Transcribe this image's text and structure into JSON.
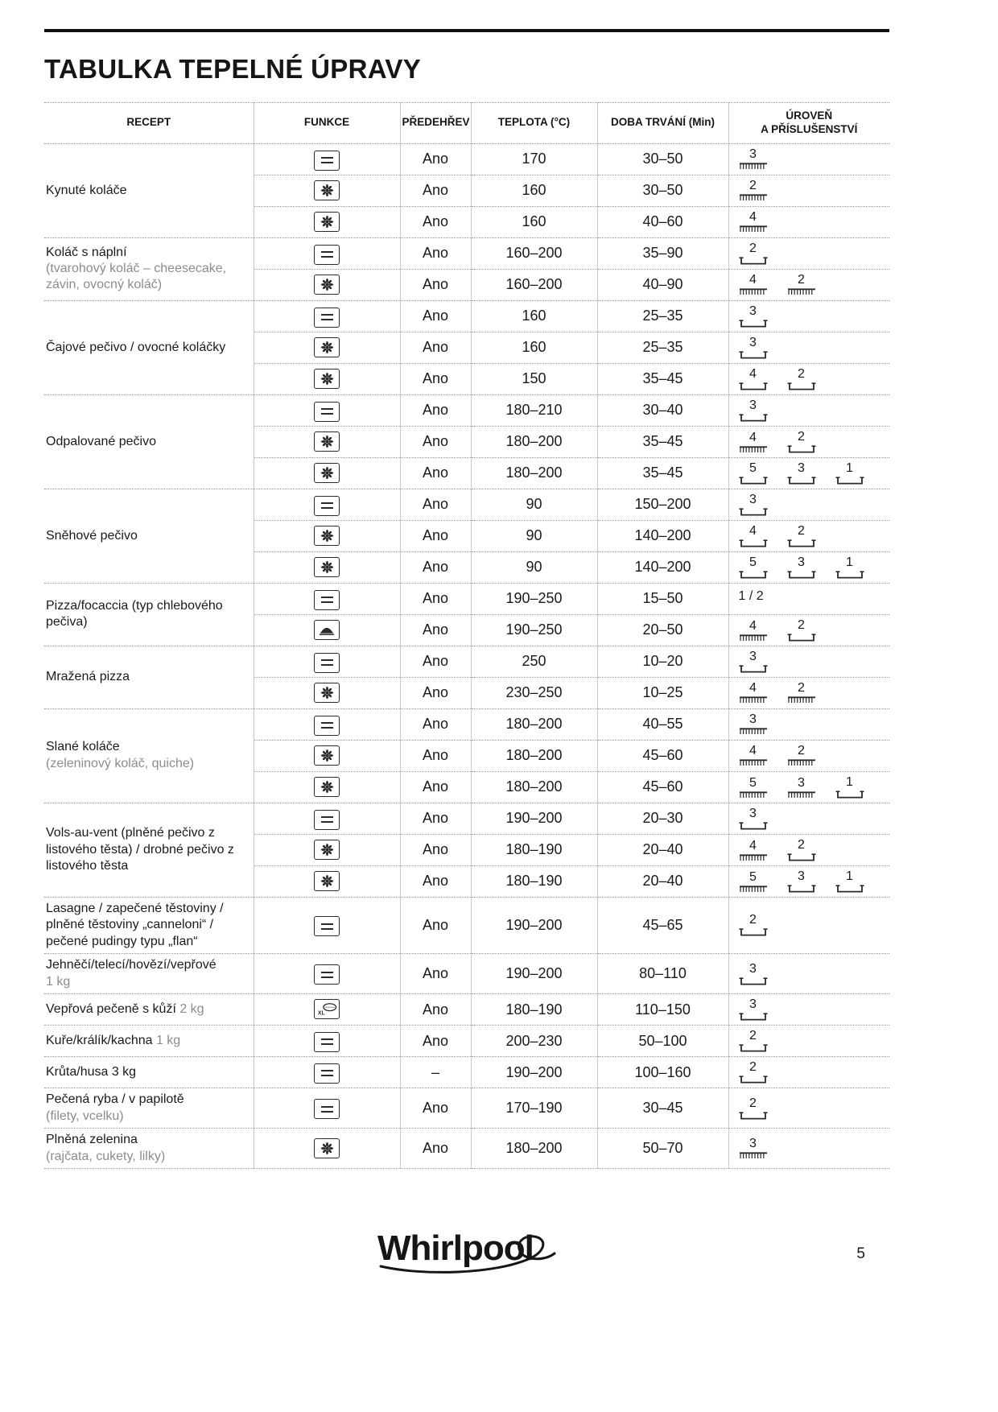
{
  "page": {
    "title": "TABULKA TEPELNÉ ÚPRAVY",
    "page_number": "5",
    "brand": "Whirlpool"
  },
  "table": {
    "headers": [
      "RECEPT",
      "FUNKCE",
      "PŘEDEHŘEV",
      "TEPLOTA (°C)",
      "DOBA TRVÁNÍ (Min)",
      "ÚROVEŇ\nA PŘÍSLUŠENSTVÍ"
    ],
    "function_legend": {
      "static": "static-heating-function",
      "fan": "forced-air-function",
      "bread": "bread-pizza-function",
      "maxi": "maxi-cooking-function"
    },
    "groups": [
      {
        "recipe": "Kynuté koláče",
        "rows": [
          {
            "fn": "static",
            "preheat": "Ano",
            "temp": "170",
            "time": "30–50",
            "levels": [
              {
                "n": "3",
                "t": "wire"
              }
            ]
          },
          {
            "fn": "fan",
            "preheat": "Ano",
            "temp": "160",
            "time": "30–50",
            "levels": [
              {
                "n": "2",
                "t": "wire"
              }
            ]
          },
          {
            "fn": "fan",
            "preheat": "Ano",
            "temp": "160",
            "time": "40–60",
            "levels": [
              {
                "n": "4",
                "t": "wire"
              }
            ]
          }
        ]
      },
      {
        "recipe": "Koláč s náplní",
        "sub": "(tvarohový koláč – cheesecake, závin, ovocný koláč)",
        "rows": [
          {
            "fn": "static",
            "preheat": "Ano",
            "temp": "160–200",
            "time": "35–90",
            "levels": [
              {
                "n": "2",
                "t": "tray"
              }
            ]
          },
          {
            "fn": "fan",
            "preheat": "Ano",
            "temp": "160–200",
            "time": "40–90",
            "levels": [
              {
                "n": "4",
                "t": "wire"
              },
              {
                "n": "2",
                "t": "wire"
              }
            ]
          }
        ]
      },
      {
        "recipe": "Čajové pečivo / ovocné koláčky",
        "rows": [
          {
            "fn": "static",
            "preheat": "Ano",
            "temp": "160",
            "time": "25–35",
            "levels": [
              {
                "n": "3",
                "t": "tray"
              }
            ]
          },
          {
            "fn": "fan",
            "preheat": "Ano",
            "temp": "160",
            "time": "25–35",
            "levels": [
              {
                "n": "3",
                "t": "tray"
              }
            ]
          },
          {
            "fn": "fan",
            "preheat": "Ano",
            "temp": "150",
            "time": "35–45",
            "levels": [
              {
                "n": "4",
                "t": "tray"
              },
              {
                "n": "2",
                "t": "tray"
              }
            ]
          }
        ]
      },
      {
        "recipe": "Odpalované pečivo",
        "rows": [
          {
            "fn": "static",
            "preheat": "Ano",
            "temp": "180–210",
            "time": "30–40",
            "levels": [
              {
                "n": "3",
                "t": "tray"
              }
            ]
          },
          {
            "fn": "fan",
            "preheat": "Ano",
            "temp": "180–200",
            "time": "35–45",
            "levels": [
              {
                "n": "4",
                "t": "wire"
              },
              {
                "n": "2",
                "t": "tray"
              }
            ]
          },
          {
            "fn": "fan",
            "preheat": "Ano",
            "temp": "180–200",
            "time": "35–45",
            "levels": [
              {
                "n": "5",
                "t": "tray"
              },
              {
                "n": "3",
                "t": "tray"
              },
              {
                "n": "1",
                "t": "tray"
              }
            ]
          }
        ]
      },
      {
        "recipe": "Sněhové pečivo",
        "rows": [
          {
            "fn": "static",
            "preheat": "Ano",
            "temp": "90",
            "time": "150–200",
            "levels": [
              {
                "n": "3",
                "t": "tray"
              }
            ]
          },
          {
            "fn": "fan",
            "preheat": "Ano",
            "temp": "90",
            "time": "140–200",
            "levels": [
              {
                "n": "4",
                "t": "tray"
              },
              {
                "n": "2",
                "t": "tray"
              }
            ]
          },
          {
            "fn": "fan",
            "preheat": "Ano",
            "temp": "90",
            "time": "140–200",
            "levels": [
              {
                "n": "5",
                "t": "tray"
              },
              {
                "n": "3",
                "t": "tray"
              },
              {
                "n": "1",
                "t": "tray"
              }
            ]
          }
        ]
      },
      {
        "recipe": "Pizza/focaccia (typ chlebového pečiva)",
        "rows": [
          {
            "fn": "static",
            "preheat": "Ano",
            "temp": "190–250",
            "time": "15–50",
            "levels": [
              {
                "n": "1 / 2",
                "t": "none"
              }
            ]
          },
          {
            "fn": "bread",
            "preheat": "Ano",
            "temp": "190–250",
            "time": "20–50",
            "levels": [
              {
                "n": "4",
                "t": "wire"
              },
              {
                "n": "2",
                "t": "tray"
              }
            ]
          }
        ]
      },
      {
        "recipe": "Mražená pizza",
        "rows": [
          {
            "fn": "static",
            "preheat": "Ano",
            "temp": "250",
            "time": "10–20",
            "levels": [
              {
                "n": "3",
                "t": "tray"
              }
            ]
          },
          {
            "fn": "fan",
            "preheat": "Ano",
            "temp": "230–250",
            "time": "10–25",
            "levels": [
              {
                "n": "4",
                "t": "wire"
              },
              {
                "n": "2",
                "t": "wire"
              }
            ]
          }
        ]
      },
      {
        "recipe": "Slané koláče",
        "sub": "(zeleninový koláč, quiche)",
        "rows": [
          {
            "fn": "static",
            "preheat": "Ano",
            "temp": "180–200",
            "time": "40–55",
            "levels": [
              {
                "n": "3",
                "t": "wire"
              }
            ]
          },
          {
            "fn": "fan",
            "preheat": "Ano",
            "temp": "180–200",
            "time": "45–60",
            "levels": [
              {
                "n": "4",
                "t": "wire"
              },
              {
                "n": "2",
                "t": "wire"
              }
            ]
          },
          {
            "fn": "fan",
            "preheat": "Ano",
            "temp": "180–200",
            "time": "45–60",
            "levels": [
              {
                "n": "5",
                "t": "wire"
              },
              {
                "n": "3",
                "t": "wire"
              },
              {
                "n": "1",
                "t": "tray"
              }
            ]
          }
        ]
      },
      {
        "recipe": "Vols-au-vent (plněné pečivo z listového těsta) / drobné pečivo z listového těsta",
        "rows": [
          {
            "fn": "static",
            "preheat": "Ano",
            "temp": "190–200",
            "time": "20–30",
            "levels": [
              {
                "n": "3",
                "t": "tray"
              }
            ]
          },
          {
            "fn": "fan",
            "preheat": "Ano",
            "temp": "180–190",
            "time": "20–40",
            "levels": [
              {
                "n": "4",
                "t": "wire"
              },
              {
                "n": "2",
                "t": "tray"
              }
            ]
          },
          {
            "fn": "fan",
            "preheat": "Ano",
            "temp": "180–190",
            "time": "20–40",
            "levels": [
              {
                "n": "5",
                "t": "wire"
              },
              {
                "n": "3",
                "t": "tray"
              },
              {
                "n": "1",
                "t": "tray"
              }
            ]
          }
        ]
      },
      {
        "recipe": "Lasagne / zapečené těstoviny / plněné těstoviny „canneloni“ / pečené pudingy typu „flan“",
        "rows": [
          {
            "fn": "static",
            "preheat": "Ano",
            "temp": "190–200",
            "time": "45–65",
            "levels": [
              {
                "n": "2",
                "t": "tray"
              }
            ]
          }
        ]
      },
      {
        "recipe": "Jehněčí/telecí/hovězí/vepřové",
        "sub": "1 kg",
        "rows": [
          {
            "fn": "static",
            "preheat": "Ano",
            "temp": "190–200",
            "time": "80–110",
            "levels": [
              {
                "n": "3",
                "t": "tray"
              }
            ]
          }
        ]
      },
      {
        "recipe": "Vepřová pečeně s kůží",
        "suffix": "2 kg",
        "rows": [
          {
            "fn": "maxi",
            "preheat": "Ano",
            "temp": "180–190",
            "time": "110–150",
            "levels": [
              {
                "n": "3",
                "t": "tray"
              }
            ]
          }
        ]
      },
      {
        "recipe": "Kuře/králík/kachna",
        "suffix": "1 kg",
        "rows": [
          {
            "fn": "static",
            "preheat": "Ano",
            "temp": "200–230",
            "time": "50–100",
            "levels": [
              {
                "n": "2",
                "t": "tray"
              }
            ]
          }
        ]
      },
      {
        "recipe": "Krůta/husa 3 kg",
        "rows": [
          {
            "fn": "static",
            "preheat": "–",
            "temp": "190–200",
            "time": "100–160",
            "levels": [
              {
                "n": "2",
                "t": "tray"
              }
            ]
          }
        ]
      },
      {
        "recipe": "Pečená ryba / v papilotě",
        "sub": "(filety, vcelku)",
        "rows": [
          {
            "fn": "static",
            "preheat": "Ano",
            "temp": "170–190",
            "time": "30–45",
            "levels": [
              {
                "n": "2",
                "t": "tray"
              }
            ]
          }
        ]
      },
      {
        "recipe": "Plněná zelenina",
        "sub": "(rajčata, cukety, lilky)",
        "rows": [
          {
            "fn": "fan",
            "preheat": "Ano",
            "temp": "180–200",
            "time": "50–70",
            "levels": [
              {
                "n": "3",
                "t": "wire"
              }
            ]
          }
        ]
      }
    ]
  }
}
